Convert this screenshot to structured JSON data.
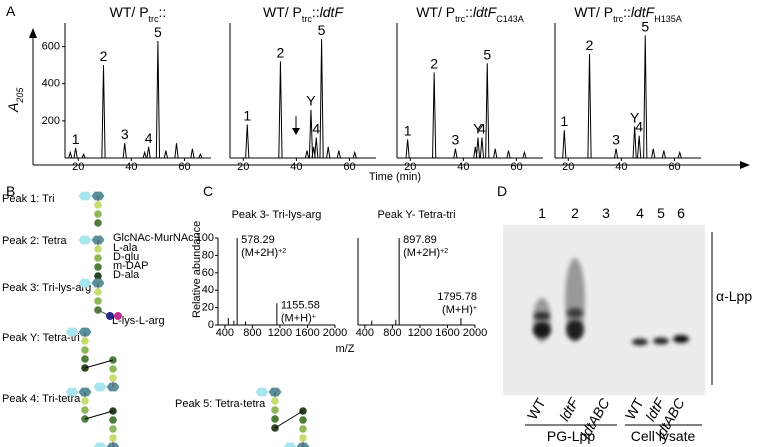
{
  "panel_a": {
    "label": "A",
    "y_label": "A",
    "y_label_sub": "205",
    "x_label": "Time (min)",
    "xlim": [
      15,
      70
    ],
    "ylim": [
      0,
      700
    ],
    "xticks": [
      20,
      40,
      60
    ],
    "yticks": [
      200,
      400,
      600
    ],
    "traces": [
      {
        "title": [
          {
            "text": "WT/ P"
          },
          {
            "text": "trc",
            "sub": true
          },
          {
            "text": "::"
          }
        ],
        "peaks": [
          {
            "time": 17,
            "height": 30
          },
          {
            "time": 19,
            "height": 55,
            "label": "1"
          },
          {
            "time": 22,
            "height": 20
          },
          {
            "time": 29.5,
            "height": 500,
            "label": "2"
          },
          {
            "time": 37.5,
            "height": 80,
            "label": "3"
          },
          {
            "time": 45,
            "height": 30
          },
          {
            "time": 46.5,
            "height": 60,
            "label": "4"
          },
          {
            "time": 50,
            "height": 630,
            "label": "5"
          },
          {
            "time": 53,
            "height": 40
          },
          {
            "time": 57,
            "height": 80
          },
          {
            "time": 63,
            "height": 50
          },
          {
            "time": 66,
            "height": 20
          }
        ]
      },
      {
        "title": [
          {
            "text": "WT/ P"
          },
          {
            "text": "trc",
            "sub": true
          },
          {
            "text": "::"
          },
          {
            "text": "ldtF",
            "italic": true
          }
        ],
        "peaks": [
          {
            "time": 21.5,
            "height": 180,
            "label": "1"
          },
          {
            "time": 34,
            "height": 520,
            "label": "2"
          },
          {
            "time": 44,
            "height": 40
          },
          {
            "time": 45.5,
            "height": 260,
            "label": "Y"
          },
          {
            "time": 46.5,
            "height": 60
          },
          {
            "time": 47.5,
            "height": 110,
            "label": "4"
          },
          {
            "time": 49.5,
            "height": 640,
            "label": "5"
          },
          {
            "time": 52,
            "height": 60
          },
          {
            "time": 56,
            "height": 40
          },
          {
            "time": 62,
            "height": 30
          }
        ]
      },
      {
        "title": [
          {
            "text": "WT/ P"
          },
          {
            "text": "trc",
            "sub": true
          },
          {
            "text": "::"
          },
          {
            "text": "ldtF",
            "italic": true
          },
          {
            "text": "C143A",
            "sub": true
          }
        ],
        "peaks": [
          {
            "time": 19,
            "height": 100,
            "label": "1"
          },
          {
            "time": 29,
            "height": 460,
            "label": "2"
          },
          {
            "time": 37,
            "height": 50,
            "label": "3"
          },
          {
            "time": 44.5,
            "height": 60
          },
          {
            "time": 45.5,
            "height": 110,
            "label": "Y"
          },
          {
            "time": 47,
            "height": 110,
            "label": "4"
          },
          {
            "time": 49,
            "height": 510,
            "label": "5"
          },
          {
            "time": 52,
            "height": 50
          },
          {
            "time": 57,
            "height": 40
          },
          {
            "time": 63,
            "height": 30
          }
        ]
      },
      {
        "title": [
          {
            "text": "WT/ P"
          },
          {
            "text": "trc",
            "sub": true
          },
          {
            "text": "::"
          },
          {
            "text": "ldtF",
            "italic": true
          },
          {
            "text": "H135A",
            "sub": true
          }
        ],
        "peaks": [
          {
            "time": 18.5,
            "height": 150,
            "label": "1"
          },
          {
            "time": 28,
            "height": 560,
            "label": "2"
          },
          {
            "time": 38,
            "height": 50,
            "label": "3"
          },
          {
            "time": 45,
            "height": 170,
            "label": "Y"
          },
          {
            "time": 46.7,
            "height": 120,
            "label": "4"
          },
          {
            "time": 49,
            "height": 660,
            "label": "5"
          },
          {
            "time": 52,
            "height": 50
          },
          {
            "time": 56,
            "height": 40
          },
          {
            "time": 62,
            "height": 30
          }
        ]
      }
    ]
  },
  "panel_b": {
    "label": "B",
    "peaks": [
      "Peak 1: Tri",
      "Peak 2: Tetra",
      "Peak 3: Tri-lys-arg",
      "Peak Y: Tetra-tri",
      "Peak 4: Tri-tetra",
      "Peak 5: Tetra-tetra"
    ],
    "legend": [
      "GlcNAc-MurNAc",
      "L-ala",
      "D-glu",
      "m-DAP",
      "D-ala"
    ],
    "branch": "L-lys-L-arg"
  },
  "panel_c": {
    "label": "C",
    "y_label": "Relative abundance",
    "x_label": "m/Z",
    "xlim": [
      300,
      2000
    ],
    "ylim": [
      0,
      100
    ],
    "xticks": [
      400,
      800,
      1200,
      1600,
      2000
    ],
    "yticks": [
      0,
      20,
      40,
      60,
      80,
      100
    ],
    "spectra": [
      {
        "title": "Peak 3- Tri-lys-arg",
        "peaks": [
          {
            "mz": 450,
            "abundance": 8
          },
          {
            "mz": 530,
            "abundance": 5
          },
          {
            "mz": 578.29,
            "abundance": 100,
            "ion": "(M+2H)",
            "charge": "+2"
          },
          {
            "mz": 700,
            "abundance": 4
          },
          {
            "mz": 1155.58,
            "abundance": 25,
            "ion": "(M+H)",
            "charge": "+"
          }
        ]
      },
      {
        "title": "Peak Y- Tetra-tri",
        "peaks": [
          {
            "mz": 500,
            "abundance": 5
          },
          {
            "mz": 850,
            "abundance": 6
          },
          {
            "mz": 897.89,
            "abundance": 100,
            "ion": "(M+2H)",
            "charge": "+2"
          },
          {
            "mz": 1795.78,
            "abundance": 8,
            "ion": "(M+H)",
            "charge": "+"
          }
        ]
      }
    ]
  },
  "panel_d": {
    "label": "D",
    "lanes": [
      "1",
      "2",
      "3",
      "4",
      "5",
      "6"
    ],
    "strains": [
      {
        "text": "WT"
      },
      {
        "text": "ldtF",
        "italic": true
      },
      {
        "text": "ldtABC",
        "italic": true
      },
      {
        "text": "WT"
      },
      {
        "text": "ldtF",
        "italic": true
      },
      {
        "text": "ldtABC",
        "italic": true
      }
    ],
    "groups": [
      "PG-Lpp",
      "Cell lysate"
    ],
    "antibody": "α-Lpp"
  }
}
